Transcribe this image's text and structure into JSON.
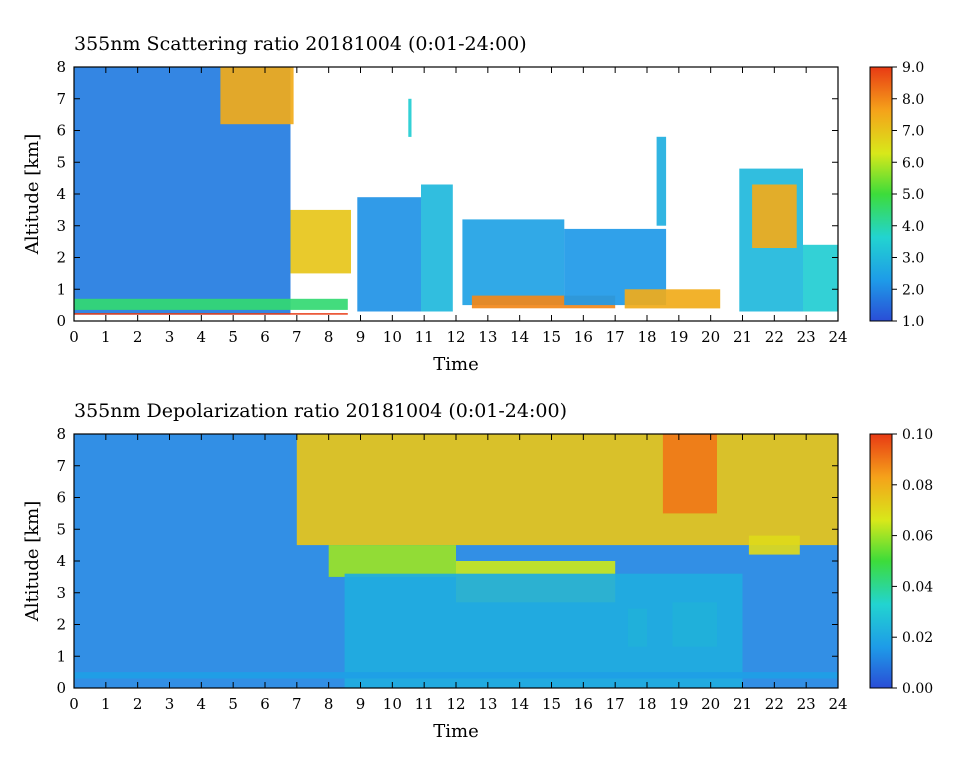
{
  "panels": [
    {
      "title": "355nm Scattering ratio  20181004 (0:01-24:00)",
      "xlabel": "Time",
      "ylabel": "Altitude [km]",
      "x_ticks": [
        "0",
        "1",
        "2",
        "3",
        "4",
        "5",
        "6",
        "7",
        "8",
        "9",
        "10",
        "11",
        "12",
        "13",
        "14",
        "15",
        "16",
        "17",
        "18",
        "19",
        "20",
        "21",
        "22",
        "23",
        "24"
      ],
      "y_ticks": [
        "0",
        "1",
        "2",
        "3",
        "4",
        "5",
        "6",
        "7",
        "8"
      ],
      "colorbar_ticks": [
        "1.0",
        "2.0",
        "3.0",
        "4.0",
        "5.0",
        "6.0",
        "7.0",
        "8.0",
        "9.0"
      ]
    },
    {
      "title": "355nm Depolarization ratio  20181004 (0:01-24:00)",
      "xlabel": "Time",
      "ylabel": "Altitude [km]",
      "x_ticks": [
        "0",
        "1",
        "2",
        "3",
        "4",
        "5",
        "6",
        "7",
        "8",
        "9",
        "10",
        "11",
        "12",
        "13",
        "14",
        "15",
        "16",
        "17",
        "18",
        "19",
        "20",
        "21",
        "22",
        "23",
        "24"
      ],
      "y_ticks": [
        "0",
        "1",
        "2",
        "3",
        "4",
        "5",
        "6",
        "7",
        "8"
      ],
      "colorbar_ticks": [
        "0.00",
        "0.02",
        "0.04",
        "0.06",
        "0.08",
        "0.10"
      ]
    }
  ],
  "chart_data": [
    {
      "type": "heatmap",
      "title": "355nm Scattering ratio  20181004 (0:01-24:00)",
      "xlabel": "Time",
      "ylabel": "Altitude [km]",
      "xlim": [
        0,
        24
      ],
      "ylim": [
        0,
        8
      ],
      "colorbar_range": [
        1.0,
        9.0
      ],
      "colormap": [
        "#2a4dd6",
        "#1e9be8",
        "#22d4d0",
        "#3ddc3a",
        "#d8e81a",
        "#f5a21a",
        "#e83a14"
      ],
      "features": [
        {
          "time": [
            0,
            6.8
          ],
          "alt": [
            0.2,
            8.0
          ],
          "value": 1.8
        },
        {
          "time": [
            0,
            8.6
          ],
          "alt": [
            0.35,
            0.7
          ],
          "value": 4.5
        },
        {
          "time": [
            0,
            8.6
          ],
          "alt": [
            0.2,
            0.25
          ],
          "value": 9.0
        },
        {
          "time": [
            4.6,
            6.9
          ],
          "alt": [
            6.2,
            8.0
          ],
          "value": 7.5
        },
        {
          "time": [
            6.8,
            8.7
          ],
          "alt": [
            1.5,
            3.5
          ],
          "value": 7.0
        },
        {
          "time": [
            8.9,
            10.9
          ],
          "alt": [
            0.3,
            3.9
          ],
          "value": 2.2
        },
        {
          "time": [
            10.5,
            10.6
          ],
          "alt": [
            5.8,
            7.0
          ],
          "value": 3.5
        },
        {
          "time": [
            10.9,
            11.9
          ],
          "alt": [
            0.3,
            4.3
          ],
          "value": 3.0
        },
        {
          "time": [
            12.2,
            15.4
          ],
          "alt": [
            0.5,
            3.2
          ],
          "value": 2.5
        },
        {
          "time": [
            12.5,
            17.0
          ],
          "alt": [
            0.4,
            0.8
          ],
          "value": 8.0
        },
        {
          "time": [
            15.4,
            18.6
          ],
          "alt": [
            0.5,
            2.9
          ],
          "value": 2.3
        },
        {
          "time": [
            18.3,
            18.6
          ],
          "alt": [
            3.0,
            5.8
          ],
          "value": 2.8
        },
        {
          "time": [
            17.3,
            20.3
          ],
          "alt": [
            0.4,
            1.0
          ],
          "value": 7.5
        },
        {
          "time": [
            20.9,
            22.9
          ],
          "alt": [
            0.3,
            4.8
          ],
          "value": 3.0
        },
        {
          "time": [
            21.3,
            22.7
          ],
          "alt": [
            2.3,
            4.3
          ],
          "value": 7.5
        },
        {
          "time": [
            22.9,
            24.0
          ],
          "alt": [
            0.3,
            2.4
          ],
          "value": 3.5
        }
      ]
    },
    {
      "type": "heatmap",
      "title": "355nm Depolarization ratio  20181004 (0:01-24:00)",
      "xlabel": "Time",
      "ylabel": "Altitude [km]",
      "xlim": [
        0,
        24
      ],
      "ylim": [
        0,
        8
      ],
      "colorbar_range": [
        0.0,
        0.1
      ],
      "colormap": [
        "#2a4dd6",
        "#1e9be8",
        "#22d4d0",
        "#3ddc3a",
        "#d8e81a",
        "#f5a21a",
        "#e83a14"
      ],
      "features": [
        {
          "time": [
            0,
            24
          ],
          "alt": [
            0,
            8
          ],
          "value": 0.012
        },
        {
          "time": [
            7.0,
            24.0
          ],
          "alt": [
            4.5,
            8.0
          ],
          "value": 0.075
        },
        {
          "time": [
            8.0,
            12.0
          ],
          "alt": [
            3.5,
            4.5
          ],
          "value": 0.06
        },
        {
          "time": [
            12.0,
            17.0
          ],
          "alt": [
            2.7,
            4.0
          ],
          "value": 0.065
        },
        {
          "time": [
            18.5,
            20.2
          ],
          "alt": [
            5.5,
            8.0
          ],
          "value": 0.09
        },
        {
          "time": [
            18.8,
            20.2
          ],
          "alt": [
            1.3,
            2.7
          ],
          "value": 0.04
        },
        {
          "time": [
            17.4,
            18.0
          ],
          "alt": [
            1.3,
            2.5
          ],
          "value": 0.04
        },
        {
          "time": [
            21.2,
            22.8
          ],
          "alt": [
            4.2,
            4.8
          ],
          "value": 0.07
        },
        {
          "time": [
            8.5,
            21.0
          ],
          "alt": [
            0.0,
            3.6
          ],
          "value": 0.022
        },
        {
          "time": [
            0,
            24
          ],
          "alt": [
            0.3,
            0.5
          ],
          "value": 0.018
        }
      ]
    }
  ]
}
